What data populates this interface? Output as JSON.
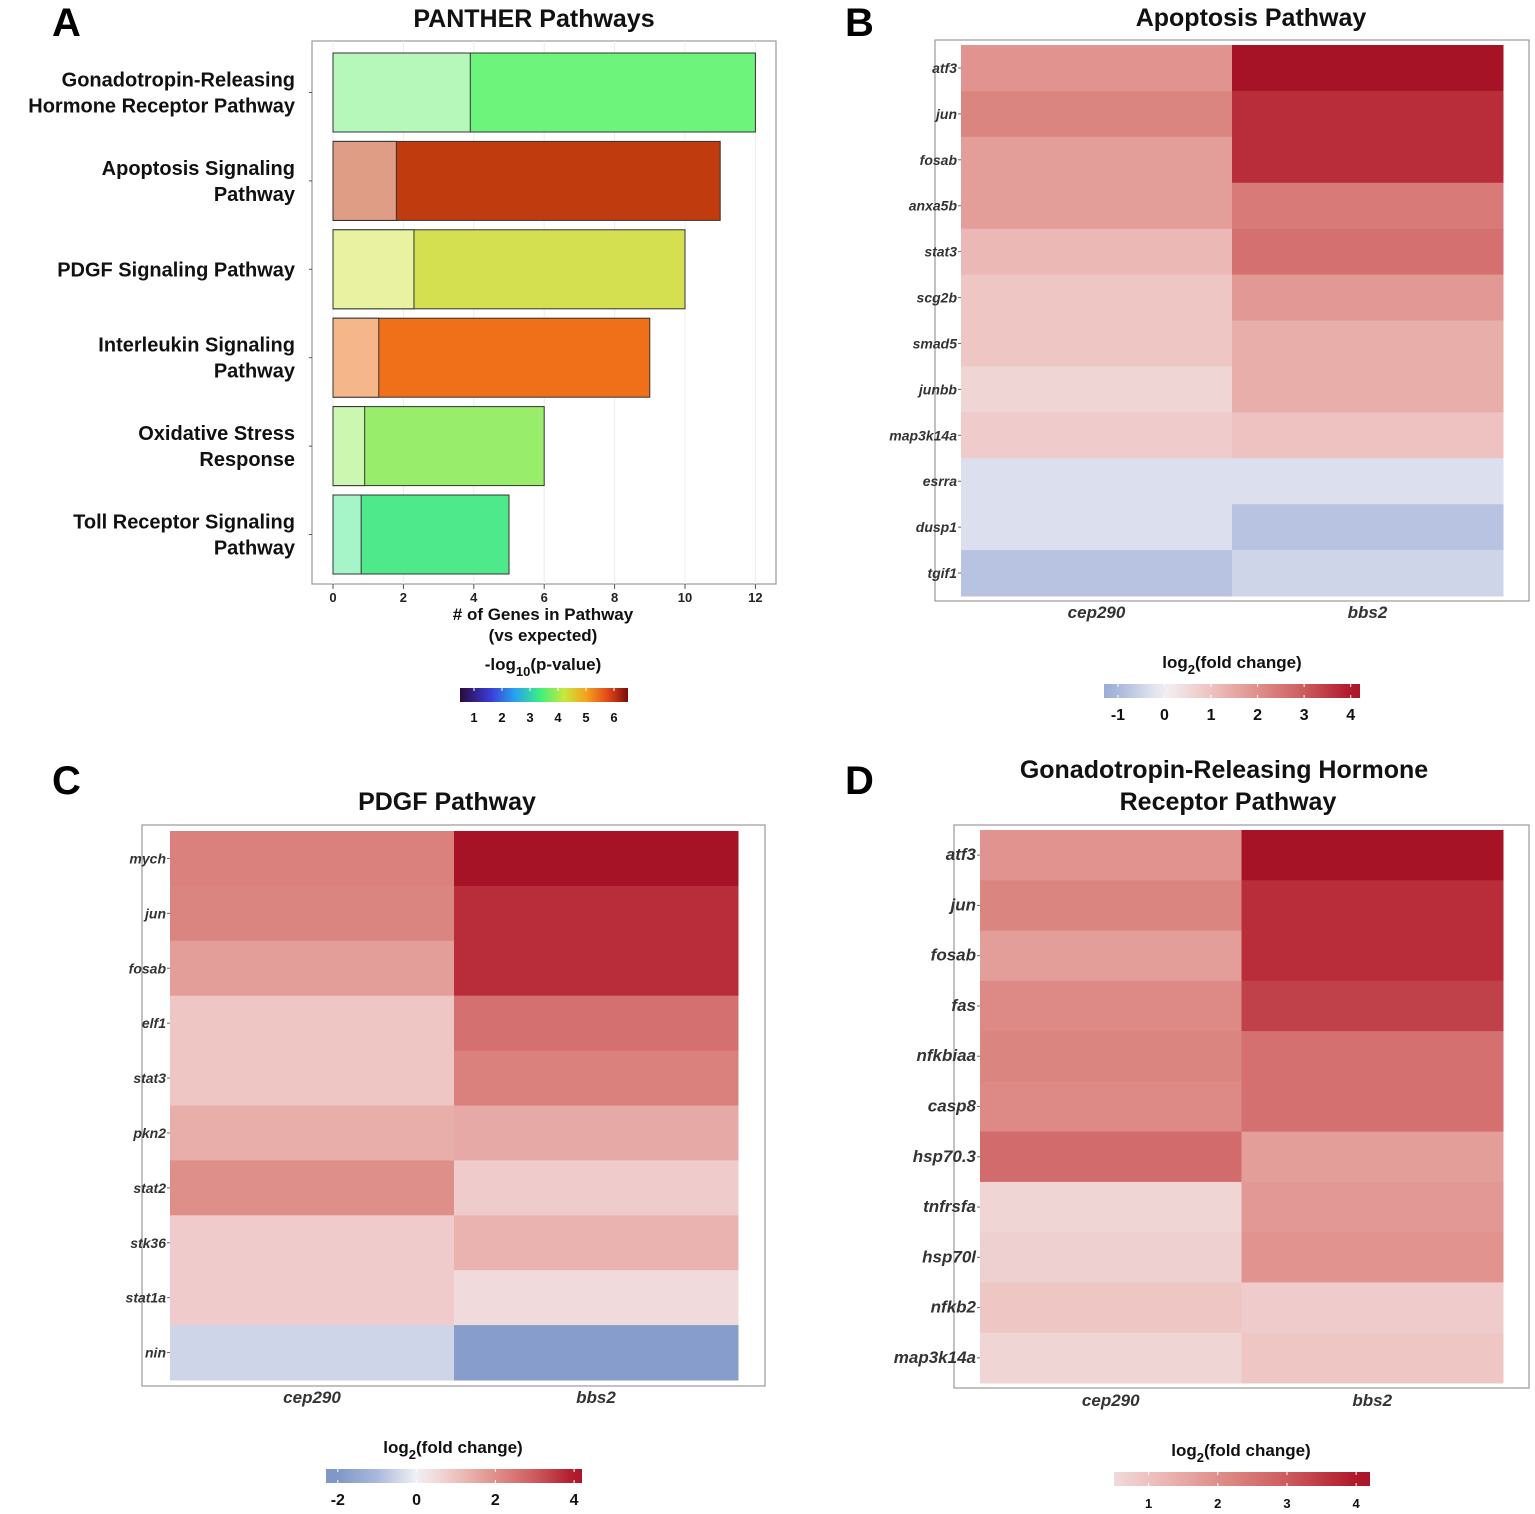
{
  "panels": {
    "A": {
      "letter": "A",
      "chart_data": {
        "type": "bar",
        "orientation": "horizontal",
        "title": "PANTHER Pathways",
        "categories": [
          [
            "Gonadotropin-Releasing",
            "Hormone Receptor Pathway"
          ],
          [
            "Apoptosis Signaling",
            "Pathway"
          ],
          [
            "PDGF Signaling Pathway"
          ],
          [
            "Interleukin Signaling",
            "Pathway"
          ],
          [
            "Oxidative Stress",
            "Response"
          ],
          [
            "Toll Receptor Signaling",
            "Pathway"
          ]
        ],
        "observed": [
          12,
          11,
          10,
          9,
          6,
          5
        ],
        "expected": [
          3.9,
          1.8,
          2.3,
          1.3,
          0.9,
          0.8
        ],
        "bar_colors": [
          "#6cf57a",
          "#c03b0e",
          "#d4e050",
          "#ef7019",
          "#98ee6a",
          "#4ee98a"
        ],
        "expected_colors": [
          "#b5f8b9",
          "#e09d85",
          "#e9f2a1",
          "#f5b78a",
          "#ccf7b1",
          "#a6f5c8"
        ],
        "xlim": [
          0,
          12.6
        ],
        "xticks": [
          0,
          2,
          4,
          6,
          8,
          10,
          12
        ],
        "xlabel_line1": "# of Genes in Pathway",
        "xlabel_line2": "(vs expected)",
        "legend": {
          "title_prefix": "-log",
          "title_sub": "10",
          "title_suffix": "(p-value)",
          "ticks": [
            1,
            2,
            3,
            4,
            5,
            6
          ],
          "range": [
            0.5,
            6.5
          ]
        }
      }
    },
    "B": {
      "letter": "B",
      "chart_data": {
        "type": "heatmap",
        "title": "Apoptosis Pathway",
        "rows": [
          "atf3",
          "jun",
          "fosab",
          "anxa5b",
          "stat3",
          "scg2b",
          "smad5",
          "junbb",
          "map3k14a",
          "esrra",
          "dusp1",
          "tgif1"
        ],
        "columns": [
          "cep290",
          "bbs2"
        ],
        "values": [
          [
            1.9,
            4.3
          ],
          [
            2.2,
            3.7
          ],
          [
            1.7,
            3.7
          ],
          [
            1.7,
            2.4
          ],
          [
            1.2,
            2.6
          ],
          [
            0.9,
            1.8
          ],
          [
            0.9,
            1.4
          ],
          [
            0.6,
            1.4
          ],
          [
            0.8,
            1.0
          ],
          [
            -0.3,
            -0.3
          ],
          [
            -0.3,
            -0.8
          ],
          [
            -0.8,
            -0.5
          ]
        ],
        "legend": {
          "title_prefix": "log",
          "title_sub": "2",
          "title_suffix": "(fold change)",
          "ticks": [
            -1,
            0,
            1,
            2,
            3,
            4
          ],
          "range": [
            -1.3,
            4.2
          ]
        }
      }
    },
    "C": {
      "letter": "C",
      "chart_data": {
        "type": "heatmap",
        "title": "PDGF Pathway",
        "rows": [
          "mych",
          "jun",
          "fosab",
          "elf1",
          "stat3",
          "pkn2",
          "stat2",
          "stk36",
          "stat1a",
          "nin"
        ],
        "columns": [
          "cep290",
          "bbs2"
        ],
        "values": [
          [
            2.3,
            4.3
          ],
          [
            2.2,
            3.7
          ],
          [
            1.7,
            3.7
          ],
          [
            0.9,
            2.6
          ],
          [
            0.9,
            2.3
          ],
          [
            1.4,
            1.5
          ],
          [
            2.0,
            0.8
          ],
          [
            0.8,
            1.3
          ],
          [
            0.8,
            0.5
          ],
          [
            -0.5,
            -1.8
          ]
        ],
        "legend": {
          "title_prefix": "log",
          "title_sub": "2",
          "title_suffix": "(fold change)",
          "ticks": [
            -2,
            0,
            2,
            4
          ],
          "range": [
            -2.3,
            4.2
          ]
        }
      }
    },
    "D": {
      "letter": "D",
      "chart_data": {
        "type": "heatmap",
        "title_line1": "Gonadotropin-Releasing Hormone",
        "title_line2": "Receptor Pathway",
        "rows": [
          "atf3",
          "jun",
          "fosab",
          "fas",
          "nfkbiaa",
          "casp8",
          "hsp70.3",
          "tnfrsfa",
          "hsp70l",
          "nfkb2",
          "map3k14a"
        ],
        "columns": [
          "cep290",
          "bbs2"
        ],
        "values": [
          [
            1.9,
            4.3
          ],
          [
            2.2,
            3.7
          ],
          [
            1.7,
            3.7
          ],
          [
            2.1,
            3.4
          ],
          [
            2.2,
            2.6
          ],
          [
            2.1,
            2.6
          ],
          [
            2.7,
            1.7
          ],
          [
            0.6,
            1.8
          ],
          [
            0.7,
            1.9
          ],
          [
            0.9,
            0.8
          ],
          [
            0.6,
            0.9
          ]
        ],
        "legend": {
          "title_prefix": "log",
          "title_sub": "2",
          "title_suffix": "(fold change)",
          "ticks": [
            1,
            2,
            3,
            4
          ],
          "range": [
            0.5,
            4.2
          ]
        }
      }
    }
  }
}
